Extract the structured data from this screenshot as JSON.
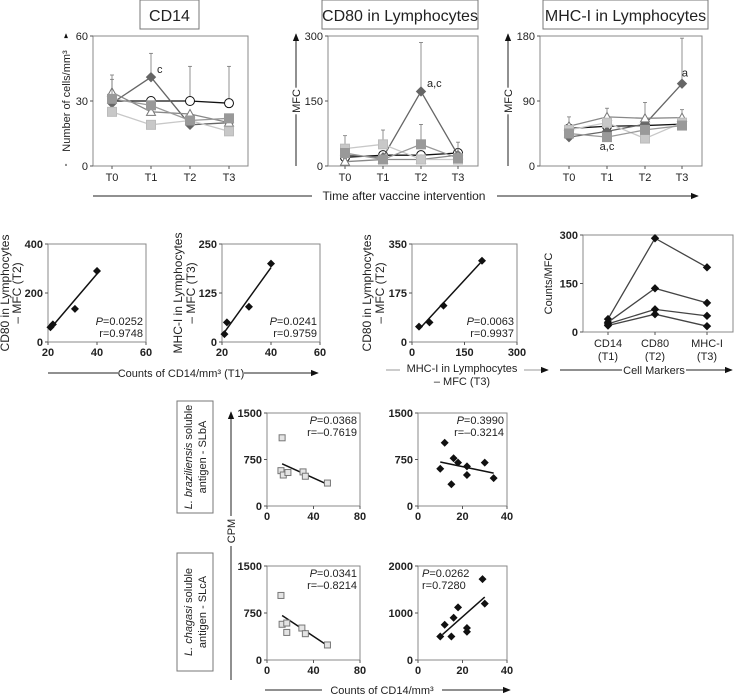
{
  "chart_data": [
    {
      "id": "cd14",
      "type": "line",
      "title": "CD14",
      "ylabel": "Number of cells/mm³",
      "categories": [
        "T0",
        "T1",
        "T2",
        "T3"
      ],
      "ylim": [
        0,
        60
      ],
      "yticks": [
        0,
        30,
        60
      ],
      "series": [
        {
          "name": "open-circle",
          "values": [
            30,
            30,
            30,
            29
          ],
          "err": [
            null,
            null,
            46,
            46
          ]
        },
        {
          "name": "dark-diamond",
          "values": [
            29,
            41,
            19,
            20
          ],
          "err": [
            null,
            52,
            null,
            null
          ]
        },
        {
          "name": "open-triangle",
          "values": [
            34,
            25,
            24,
            20
          ],
          "err": [
            42,
            null,
            null,
            null
          ]
        },
        {
          "name": "light-square",
          "values": [
            25,
            19,
            21,
            16
          ],
          "err": [
            null,
            null,
            null,
            null
          ]
        },
        {
          "name": "mid-square",
          "values": [
            31,
            28,
            21,
            22
          ],
          "err": [
            40,
            null,
            null,
            null
          ]
        }
      ],
      "annotations": [
        {
          "text": "c",
          "category": "T1",
          "value": 43
        }
      ]
    },
    {
      "id": "cd80",
      "type": "line",
      "title": "CD80 in Lymphocytes",
      "ylabel": "MFC",
      "categories": [
        "T0",
        "T1",
        "T2",
        "T3"
      ],
      "ylim": [
        0,
        300
      ],
      "yticks": [
        0,
        150,
        300
      ],
      "series": [
        {
          "name": "open-circle",
          "values": [
            20,
            25,
            25,
            30
          ],
          "err": [
            null,
            null,
            null,
            null
          ]
        },
        {
          "name": "dark-diamond",
          "values": [
            25,
            20,
            172,
            25
          ],
          "err": [
            null,
            null,
            285,
            null
          ]
        },
        {
          "name": "open-triangle",
          "values": [
            10,
            15,
            15,
            25
          ],
          "err": [
            null,
            null,
            null,
            null
          ]
        },
        {
          "name": "light-square",
          "values": [
            40,
            50,
            15,
            15
          ],
          "err": [
            70,
            83,
            null,
            null
          ]
        },
        {
          "name": "mid-square",
          "values": [
            30,
            15,
            50,
            18
          ],
          "err": [
            null,
            null,
            96,
            55
          ]
        }
      ],
      "annotations": [
        {
          "text": "a,c",
          "category": "T2",
          "value": 182
        }
      ]
    },
    {
      "id": "mhc",
      "type": "line",
      "title": "MHC-I in Lymphocytes",
      "ylabel": "MFC",
      "categories": [
        "T0",
        "T1",
        "T2",
        "T3"
      ],
      "ylim": [
        0,
        180
      ],
      "yticks": [
        0,
        90,
        180
      ],
      "series": [
        {
          "name": "open-circle",
          "values": [
            52,
            55,
            56,
            58
          ],
          "err": [
            null,
            null,
            null,
            null
          ]
        },
        {
          "name": "dark-diamond",
          "values": [
            40,
            48,
            58,
            114
          ],
          "err": [
            null,
            null,
            null,
            177
          ]
        },
        {
          "name": "open-triangle",
          "values": [
            55,
            68,
            66,
            67
          ],
          "err": [
            68,
            80,
            88,
            78
          ]
        },
        {
          "name": "light-square",
          "values": [
            50,
            60,
            38,
            60
          ],
          "err": [
            null,
            null,
            null,
            null
          ]
        },
        {
          "name": "mid-square",
          "values": [
            45,
            40,
            50,
            56
          ],
          "err": [
            null,
            null,
            null,
            null
          ]
        }
      ],
      "annotations": [
        {
          "text": "a",
          "category": "T3",
          "value": 124
        },
        {
          "text": "a,c",
          "category": "T1",
          "value": 22
        }
      ]
    },
    {
      "id": "s1",
      "type": "scatter",
      "ylabel": [
        "CD80 in Lymphocytes",
        "– MFC (T2)"
      ],
      "xlim": [
        20,
        60
      ],
      "xticks": [
        20,
        40,
        60
      ],
      "ylim": [
        0,
        400
      ],
      "yticks": [
        0,
        200,
        400
      ],
      "marker": "diamond",
      "points": [
        [
          21,
          60
        ],
        [
          22,
          72
        ],
        [
          31,
          135
        ],
        [
          40,
          290
        ]
      ],
      "fit": [
        [
          21,
          55
        ],
        [
          40,
          278
        ]
      ],
      "stats": {
        "p": "=0.0252",
        "r": "r=0.9748",
        "pos": "bottom-right"
      }
    },
    {
      "id": "s2",
      "type": "scatter",
      "ylabel": [
        "MHC-I in Lymphocytes",
        "– MFC (T3)"
      ],
      "xlim": [
        20,
        60
      ],
      "xticks": [
        20,
        40,
        60
      ],
      "ylim": [
        0,
        250
      ],
      "yticks": [
        0,
        125,
        250
      ],
      "marker": "diamond",
      "points": [
        [
          21,
          20
        ],
        [
          22,
          50
        ],
        [
          31,
          90
        ],
        [
          40,
          200
        ]
      ],
      "fit": [
        [
          21,
          25
        ],
        [
          40,
          190
        ]
      ],
      "stats": {
        "p": "=0.0241",
        "r": "r=0.9759",
        "pos": "bottom-right"
      }
    },
    {
      "id": "s3",
      "type": "scatter",
      "ylabel": [
        "CD80 in Lymphocytes",
        "– MFC (T2)"
      ],
      "xlabel": [
        "MHC-I in Lymphocytes",
        "– MFC (T3)"
      ],
      "xlim": [
        0,
        300
      ],
      "xticks": [
        0,
        150,
        300
      ],
      "ylim": [
        0,
        350
      ],
      "yticks": [
        0,
        175,
        350
      ],
      "marker": "diamond",
      "points": [
        [
          20,
          55
        ],
        [
          50,
          70
        ],
        [
          90,
          130
        ],
        [
          200,
          290
        ]
      ],
      "fit": [
        [
          20,
          45
        ],
        [
          195,
          282
        ]
      ],
      "stats": {
        "p": "=0.0063",
        "r": "r=0.9937",
        "pos": "bottom-right"
      }
    },
    {
      "id": "s4",
      "type": "line",
      "ylabel": "Counts/MFC",
      "xlabel": "Cell Markers",
      "categories": [
        "CD14",
        "CD80",
        "MHC-I"
      ],
      "category_sub": [
        "(T1)",
        "(T2)",
        "(T3)"
      ],
      "ylim": [
        0,
        300
      ],
      "yticks": [
        0,
        150,
        300
      ],
      "series": [
        {
          "name": "subject-1",
          "values": [
            40,
            290,
            200
          ]
        },
        {
          "name": "subject-2",
          "values": [
            30,
            135,
            90
          ]
        },
        {
          "name": "subject-3",
          "values": [
            25,
            70,
            50
          ]
        },
        {
          "name": "subject-4",
          "values": [
            20,
            55,
            18
          ]
        }
      ]
    },
    {
      "id": "b1",
      "type": "scatter",
      "xlim": [
        0,
        80
      ],
      "xticks": [
        0,
        40,
        80
      ],
      "ylim": [
        0,
        1500
      ],
      "yticks": [
        0,
        750,
        1500
      ],
      "marker": "square",
      "points": [
        [
          13,
          1100
        ],
        [
          12,
          570
        ],
        [
          14,
          500
        ],
        [
          18,
          540
        ],
        [
          31,
          550
        ],
        [
          33,
          480
        ],
        [
          52,
          370
        ]
      ],
      "fit": [
        [
          13,
          680
        ],
        [
          52,
          350
        ]
      ],
      "stats": {
        "p": "=0.0368",
        "r": "r=–0.7619",
        "pos": "top-right"
      }
    },
    {
      "id": "b2",
      "type": "scatter",
      "xlim": [
        0,
        40
      ],
      "xticks": [
        0,
        20,
        40
      ],
      "ylim": [
        0,
        1500
      ],
      "yticks": [
        0,
        750,
        1500
      ],
      "marker": "diamond",
      "points": [
        [
          10,
          600
        ],
        [
          12,
          1020
        ],
        [
          15,
          350
        ],
        [
          16,
          770
        ],
        [
          18,
          700
        ],
        [
          22,
          640
        ],
        [
          22,
          500
        ],
        [
          30,
          700
        ],
        [
          34,
          450
        ]
      ],
      "fit": [
        [
          10,
          710
        ],
        [
          34,
          530
        ]
      ],
      "stats": {
        "p": "=0.3990",
        "r": "r=–0.3214",
        "pos": "top-right"
      }
    },
    {
      "id": "b3",
      "type": "scatter",
      "xlim": [
        0,
        80
      ],
      "xticks": [
        0,
        40,
        80
      ],
      "ylim": [
        0,
        1500
      ],
      "yticks": [
        0,
        750,
        1500
      ],
      "marker": "square",
      "points": [
        [
          12,
          1030
        ],
        [
          13,
          570
        ],
        [
          17,
          590
        ],
        [
          17,
          440
        ],
        [
          30,
          510
        ],
        [
          33,
          420
        ],
        [
          52,
          240
        ]
      ],
      "fit": [
        [
          13,
          710
        ],
        [
          52,
          230
        ]
      ],
      "stats": {
        "p": "=0.0341",
        "r": "r=–0.8214",
        "pos": "top-right"
      }
    },
    {
      "id": "b4",
      "type": "scatter",
      "xlim": [
        0,
        40
      ],
      "xticks": [
        0,
        20,
        40
      ],
      "ylim": [
        0,
        2000
      ],
      "yticks": [
        0,
        1000,
        2000
      ],
      "marker": "diamond",
      "points": [
        [
          10,
          500
        ],
        [
          12,
          750
        ],
        [
          15,
          500
        ],
        [
          16,
          900
        ],
        [
          18,
          1120
        ],
        [
          22,
          680
        ],
        [
          22,
          600
        ],
        [
          29,
          1720
        ],
        [
          30,
          1200
        ]
      ],
      "fit": [
        [
          11,
          540
        ],
        [
          30,
          1340
        ]
      ],
      "stats": {
        "p": "=0.0262",
        "r": "r=0.7280",
        "pos": "top-left"
      }
    }
  ],
  "labels": {
    "time_axis": "Time after vaccine intervention",
    "cd14_t1_axis": "Counts of CD14/mm³ (T1)",
    "p_letter": "P",
    "cpm": "CPM",
    "counts_axis": "Counts of CD14/mm³",
    "group_braziliensis": [
      "L. braziliensis",
      " soluble",
      "antigen - SLbA"
    ],
    "group_chagasi": [
      "L. chagasi",
      " soluble",
      "antigen - SLcA"
    ]
  },
  "colors": {
    "black": "#111111",
    "dark": "#666666",
    "mid": "#999999",
    "light": "#c8c8c8",
    "frame": "#888888"
  }
}
